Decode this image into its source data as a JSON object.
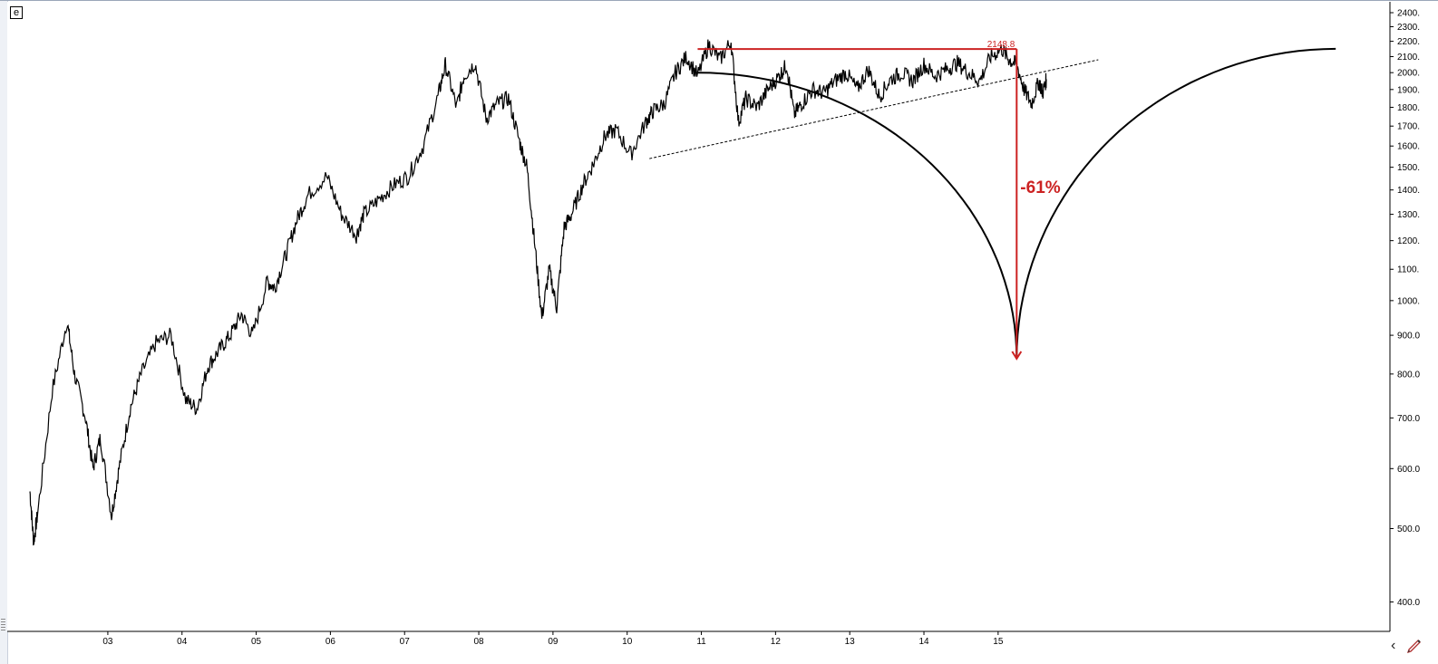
{
  "symbol_box_label": "e",
  "chart_data": {
    "type": "line",
    "title": "",
    "xlabel": "",
    "ylabel": "",
    "y_scale": "log",
    "ylim": [
      350,
      2400
    ],
    "xlim": [
      2002.0,
      2020.6
    ],
    "grid": false,
    "y_ticks": [
      "400.0",
      "500.0",
      "600.0",
      "700.0",
      "800.0",
      "900.0",
      "1000.",
      "1100.",
      "1200.",
      "1300.",
      "1400.",
      "1500.",
      "1600.",
      "1700.",
      "1800.",
      "1900.",
      "2000.",
      "2100.",
      "2200.",
      "2300.",
      "2400."
    ],
    "y_tick_values": [
      400,
      500,
      600,
      700,
      800,
      900,
      1000,
      1100,
      1200,
      1300,
      1400,
      1500,
      1600,
      1700,
      1800,
      1900,
      2000,
      2100,
      2200,
      2300,
      2400
    ],
    "x_ticks": [
      "03",
      "04",
      "05",
      "06",
      "07",
      "08",
      "09",
      "10",
      "11",
      "12",
      "13",
      "14",
      "15"
    ],
    "x_tick_values": [
      2003,
      2004,
      2005,
      2006,
      2007,
      2008,
      2009,
      2010,
      2011,
      2012,
      2013,
      2014,
      2015
    ],
    "series": [
      {
        "name": "",
        "color": "#000000",
        "x": [
          2002.0,
          2002.05,
          2002.1,
          2002.3,
          2002.5,
          2002.6,
          2002.75,
          2002.85,
          2002.95,
          2003.1,
          2003.2,
          2003.35,
          2003.5,
          2003.7,
          2003.9,
          2004.1,
          2004.25,
          2004.4,
          2004.55,
          2004.7,
          2004.85,
          2005.0,
          2005.2,
          2005.3,
          2005.45,
          2005.6,
          2005.75,
          2006.0,
          2006.2,
          2006.4,
          2006.5,
          2006.7,
          2006.9,
          2007.1,
          2007.3,
          2007.5,
          2007.6,
          2007.75,
          2007.85,
          2008.0,
          2008.15,
          2008.3,
          2008.45,
          2008.6,
          2008.7,
          2008.8,
          2008.9,
          2009.0,
          2009.1,
          2009.2,
          2009.3,
          2009.45,
          2009.6,
          2009.75,
          2009.9,
          2010.1,
          2010.3,
          2010.4,
          2010.55,
          2010.7,
          2010.85,
          2011.0,
          2011.15,
          2011.3,
          2011.45,
          2011.55,
          2011.65,
          2011.8,
          2011.95,
          2012.1,
          2012.2,
          2012.3,
          2012.4,
          2012.55,
          2012.7,
          2012.85,
          2013.0,
          2013.15,
          2013.3,
          2013.45,
          2013.6,
          2013.75,
          2013.9,
          2014.05,
          2014.2,
          2014.35,
          2014.5,
          2014.65,
          2014.8,
          2014.95,
          2015.1,
          2015.2,
          2015.3,
          2015.4,
          2015.5,
          2015.6,
          2015.65,
          2015.7
        ],
        "y": [
          560,
          480,
          520,
          760,
          940,
          800,
          700,
          600,
          660,
          520,
          600,
          720,
          800,
          880,
          900,
          740,
          720,
          820,
          860,
          900,
          960,
          900,
          1060,
          1040,
          1150,
          1280,
          1380,
          1460,
          1300,
          1220,
          1300,
          1360,
          1420,
          1460,
          1600,
          1860,
          2050,
          1800,
          1980,
          2060,
          1740,
          1820,
          1850,
          1620,
          1500,
          1200,
          950,
          1100,
          980,
          1250,
          1300,
          1420,
          1520,
          1650,
          1680,
          1560,
          1720,
          1780,
          1820,
          2000,
          2100,
          1980,
          2180,
          2080,
          2200,
          1720,
          1850,
          1800,
          1900,
          1980,
          2050,
          1760,
          1820,
          1900,
          1880,
          1950,
          2000,
          1900,
          2020,
          1860,
          1960,
          2000,
          1950,
          2050,
          1980,
          2020,
          2060,
          2000,
          1950,
          2100,
          2149,
          2080,
          2050,
          1900,
          1820,
          1950,
          1880,
          1960
        ]
      }
    ],
    "annotations": {
      "peak_label": "2148.8",
      "drop_label": "-61%",
      "peak_value": 2148.8,
      "target_value": 838,
      "peak_line_start_x": 2011.0,
      "peak_x": 2015.3,
      "trendline": {
        "x1": 2010.35,
        "y1": 1540,
        "x2": 2016.4,
        "y2": 2080
      },
      "arc_endpoints": {
        "left_x": 2011.0,
        "left_y": 2000,
        "right_x": 2019.6,
        "right_y": 2150
      },
      "arc_bottom": {
        "x": 2015.3,
        "y": 838
      },
      "colors": {
        "peak_and_drop": "#cc2222",
        "trendline": "#000000",
        "arc": "#000000"
      }
    }
  }
}
